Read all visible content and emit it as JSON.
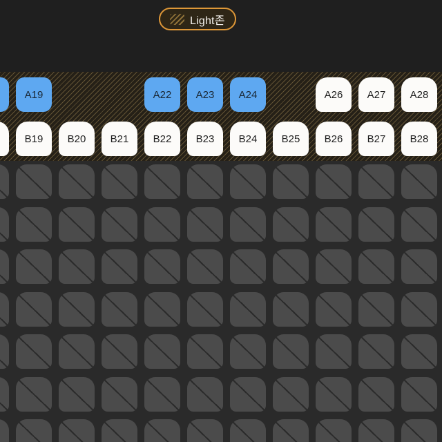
{
  "zone_badge": {
    "label": "Light존",
    "icon": "stripes-swatch-icon"
  },
  "colors": {
    "zone_border": "#DF9838",
    "zone_band_base": "#252017",
    "seat_selected": "#5EA8F1",
    "seat_available": "#FCFBF9",
    "seat_unavailable": "#4B4B4B",
    "top_background": "#1F1F1F",
    "grid_background": "#2A2A2A"
  },
  "seat_map": {
    "columns": 11,
    "labeled_rows": [
      {
        "row": "A",
        "seats": [
          {
            "col": 0,
            "label": "",
            "state": "selected"
          },
          {
            "col": 1,
            "label": "A19",
            "state": "selected"
          },
          {
            "col": 4,
            "label": "A22",
            "state": "selected"
          },
          {
            "col": 5,
            "label": "A23",
            "state": "selected"
          },
          {
            "col": 6,
            "label": "A24",
            "state": "selected"
          },
          {
            "col": 8,
            "label": "A26",
            "state": "available"
          },
          {
            "col": 9,
            "label": "A27",
            "state": "available"
          },
          {
            "col": 10,
            "label": "A28",
            "state": "available"
          }
        ]
      },
      {
        "row": "B",
        "seats": [
          {
            "col": 0,
            "label": "",
            "state": "available"
          },
          {
            "col": 1,
            "label": "B19",
            "state": "available"
          },
          {
            "col": 2,
            "label": "B20",
            "state": "available"
          },
          {
            "col": 3,
            "label": "B21",
            "state": "available"
          },
          {
            "col": 4,
            "label": "B22",
            "state": "available"
          },
          {
            "col": 5,
            "label": "B23",
            "state": "available"
          },
          {
            "col": 6,
            "label": "B24",
            "state": "available"
          },
          {
            "col": 7,
            "label": "B25",
            "state": "available"
          },
          {
            "col": 8,
            "label": "B26",
            "state": "available"
          },
          {
            "col": 9,
            "label": "B27",
            "state": "available"
          },
          {
            "col": 10,
            "label": "B28",
            "state": "available"
          }
        ]
      }
    ],
    "unavailable_grid": {
      "rows": 7,
      "columns": 11,
      "state": "unavailable"
    }
  }
}
